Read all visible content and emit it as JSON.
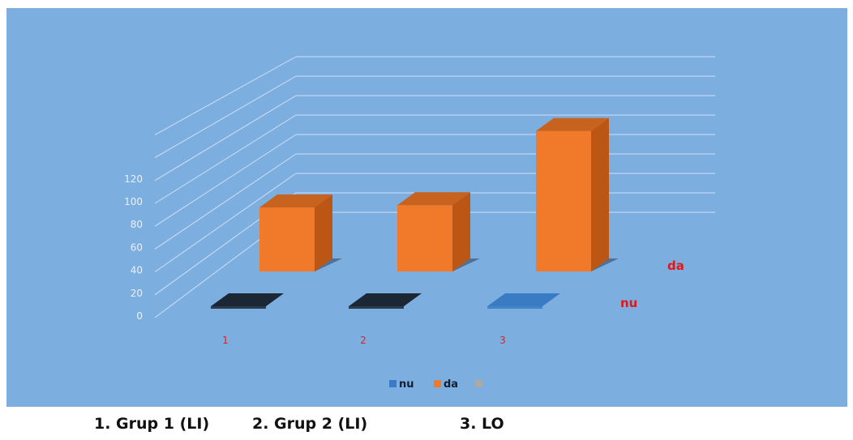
{
  "chart_data": {
    "type": "bar",
    "subtype": "3d-clustered-depth",
    "categories": [
      "1",
      "2",
      "3"
    ],
    "series": [
      {
        "name": "nu",
        "values": [
          0,
          0,
          1
        ]
      },
      {
        "name": "da",
        "values": [
          56,
          58,
          123
        ]
      }
    ],
    "depth_labels": [
      "nu",
      "da"
    ],
    "y_ticks": [
      "0",
      "20",
      "40",
      "60",
      "80",
      "100",
      "120"
    ],
    "ylim": [
      0,
      120
    ],
    "legend": {
      "placement": "bottom",
      "entries": [
        "nu",
        "da",
        ""
      ]
    },
    "colors": {
      "panel_bg": "#7daee0",
      "gridline": "#cfe0f3",
      "tick_text": "#e8f1fb",
      "category_text": "#e02020",
      "depth_label_text": "#e01818",
      "da_front": "#f07a2a",
      "da_top": "#c8621f",
      "da_side": "#bb5614",
      "nu_zero": "#1c2736",
      "nu_small": "#3a7cc4",
      "legend_nu": "#3a7cc4",
      "legend_da": "#f07a2a",
      "legend_extra": "#a9a9a9",
      "legend_text": "#0f1f33"
    },
    "grid": true
  },
  "captions": [
    "1. Grup 1 (LI)",
    "2. Grup 2 (LI)",
    "3. LO"
  ]
}
